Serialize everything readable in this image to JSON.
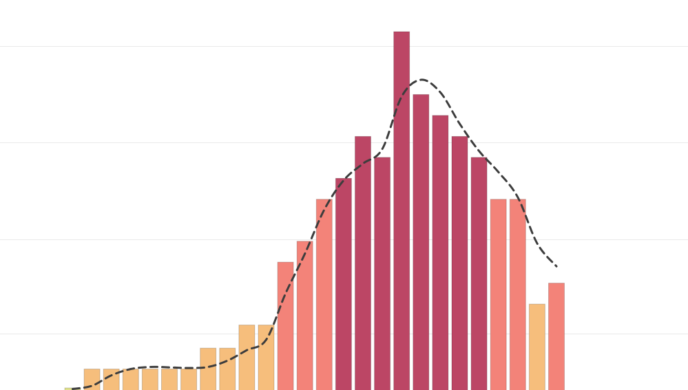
{
  "chart_data": {
    "type": "bar",
    "title": "",
    "xlabel": "",
    "ylabel": "",
    "grid": true,
    "ylim": [
      0,
      170
    ],
    "gridlines": [
      27,
      72,
      118,
      164
    ],
    "values": [
      1,
      10,
      10,
      10,
      10,
      10,
      10,
      20,
      20,
      31,
      31,
      61,
      71,
      91,
      101,
      121,
      111,
      171,
      141,
      131,
      121,
      111,
      91,
      91,
      41,
      51
    ],
    "trend": [
      0.5,
      2,
      7,
      10,
      11,
      10.8,
      10.5,
      11,
      14,
      19,
      24,
      46,
      65,
      86,
      100,
      108,
      115,
      140,
      148,
      142,
      127,
      114,
      104,
      92,
      70,
      59
    ],
    "bar_colors": [
      "#dfe08a",
      "#f6be7c",
      "#f6be7c",
      "#f6be7c",
      "#f6be7c",
      "#f6be7c",
      "#f6be7c",
      "#f6be7c",
      "#f6be7c",
      "#f6be7c",
      "#f6be7c",
      "#f38379",
      "#f38379",
      "#f38379",
      "#bc4665",
      "#bc4665",
      "#bc4665",
      "#bc4665",
      "#bc4665",
      "#bc4665",
      "#bc4665",
      "#bc4665",
      "#f38379",
      "#f38379",
      "#f6be7c",
      "#f38379"
    ],
    "colors": {
      "yellow_green": "#dfe08a",
      "orange": "#f6be7c",
      "salmon": "#f38379",
      "crimson": "#bc4665",
      "trend": "#3d3d3d",
      "grid": "#e9e9e9"
    }
  }
}
